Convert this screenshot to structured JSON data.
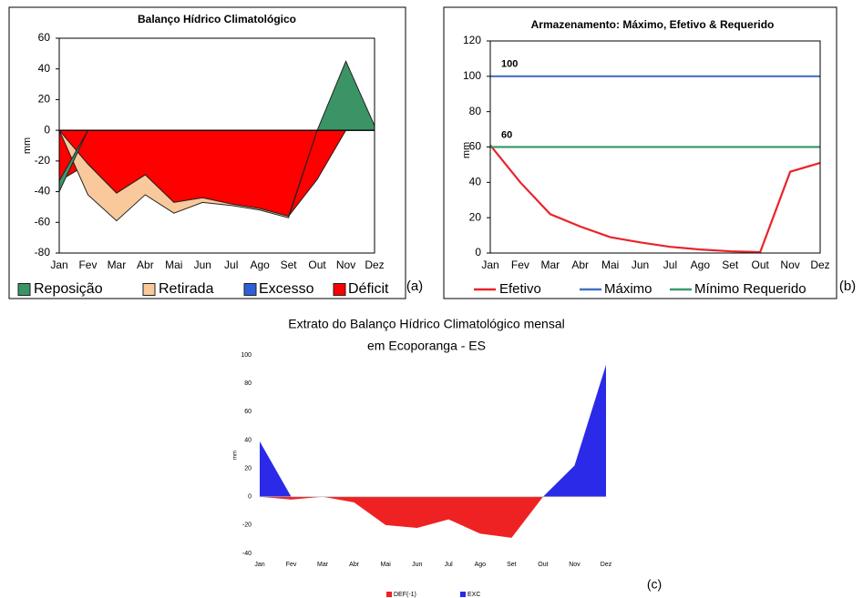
{
  "chart_data": [
    {
      "type": "area",
      "stacked": true,
      "panel_label": "(a)",
      "title": "Balanço Hídrico Climatológico",
      "ylabel": "mm",
      "categories": [
        "Jan",
        "Fev",
        "Mar",
        "Abr",
        "Mai",
        "Jun",
        "Jul",
        "Ago",
        "Set",
        "Out",
        "Nov",
        "Dez"
      ],
      "ylim": [
        -80,
        60
      ],
      "yticks": [
        -80,
        -60,
        -40,
        -20,
        0,
        20,
        40,
        60
      ],
      "series": [
        {
          "name": "Reposição",
          "color": "#3b9465",
          "values": [
            -7,
            0,
            0,
            0,
            0,
            0,
            0,
            0,
            0,
            0,
            45,
            3
          ]
        },
        {
          "name": "Retirada",
          "color": "#f9c99b",
          "values": [
            0,
            -20,
            -18,
            -13,
            -7,
            -3,
            -1,
            -1,
            -1,
            0,
            0,
            0
          ]
        },
        {
          "name": "Excesso",
          "color": "#2f5fd8",
          "values": [
            0,
            0,
            0,
            0,
            0,
            0,
            0,
            0,
            0,
            0,
            0,
            0
          ]
        },
        {
          "name": "Déficit",
          "color": "#ff0000",
          "values": [
            -33,
            -22,
            -41,
            -29,
            -47,
            -44,
            -48,
            -51,
            -56,
            -32,
            0,
            0
          ]
        }
      ]
    },
    {
      "type": "line",
      "panel_label": "(b)",
      "title": "Armazenamento: Máximo,  Efetivo & Requerido",
      "ylabel": "mm",
      "categories": [
        "Jan",
        "Fev",
        "Mar",
        "Abr",
        "Mai",
        "Jun",
        "Jul",
        "Ago",
        "Set",
        "Out",
        "Nov",
        "Dez"
      ],
      "ylim": [
        0,
        120
      ],
      "yticks": [
        0,
        20,
        40,
        60,
        80,
        100,
        120
      ],
      "series": [
        {
          "name": "Efetivo",
          "color": "#e8242a",
          "values": [
            61,
            40,
            22,
            15,
            9,
            6,
            3.5,
            2,
            1,
            0.5,
            46,
            51
          ]
        },
        {
          "name": "Máximo",
          "color": "#4472c4",
          "values": [
            100,
            100,
            100,
            100,
            100,
            100,
            100,
            100,
            100,
            100,
            100,
            100
          ]
        },
        {
          "name": "Mínimo Requerido",
          "color": "#3a9a6a",
          "values": [
            60,
            60,
            60,
            60,
            60,
            60,
            60,
            60,
            60,
            60,
            60,
            60
          ]
        }
      ]
    },
    {
      "type": "area",
      "stacked": false,
      "panel_label": "(c)",
      "title": [
        "Extrato do Balanço Hídrico Climatológico mensal",
        "em Ecoporanga - ES"
      ],
      "ylabel": "mm",
      "categories": [
        "Jan",
        "Fev",
        "Mar",
        "Abr",
        "Mai",
        "Jun",
        "Jul",
        "Ago",
        "Set",
        "Out",
        "Nov",
        "Dez"
      ],
      "ylim": [
        -40,
        100
      ],
      "yticks": [
        -40,
        -20,
        0,
        20,
        40,
        60,
        80,
        100
      ],
      "series": [
        {
          "name": "DEF(-1)",
          "color": "#ee2222",
          "values": [
            0,
            -2,
            0,
            -4,
            -20,
            -22,
            -16,
            -26,
            -29,
            0,
            0,
            0
          ]
        },
        {
          "name": "EXC",
          "color": "#2a2ae8",
          "values": [
            39,
            0,
            0,
            0,
            0,
            0,
            0,
            0,
            0,
            0,
            22,
            93
          ]
        }
      ]
    }
  ]
}
